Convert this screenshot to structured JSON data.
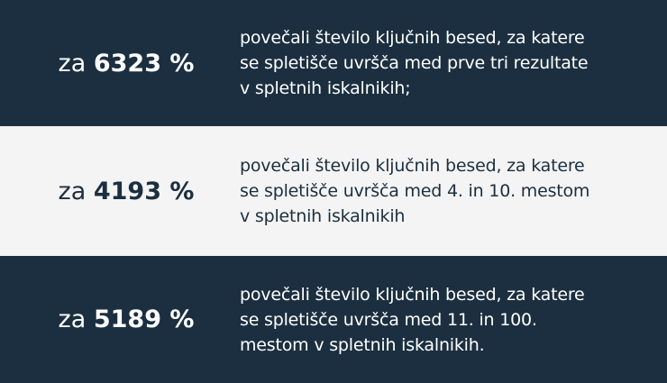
{
  "colors": {
    "dark": "#1b2f40",
    "light": "#f4f4f4"
  },
  "rows": [
    {
      "prefix": "za",
      "value": "6323 %",
      "text": "povečali število ključnih besed, za katere\nse spletišče uvršča med prve tri rezultate\nv spletnih iskalnikih;"
    },
    {
      "prefix": "za",
      "value": "4193 %",
      "text": "povečali število ključnih besed, za katere\nse spletišče uvršča med 4. in 10.  mestom\nv spletnih iskalnikih"
    },
    {
      "prefix": "za",
      "value": "5189 %",
      "text": "povečali število ključnih besed, za katere\nse spletišče uvršča med 11. in 100.\nmestom v spletnih iskalnikih."
    }
  ]
}
